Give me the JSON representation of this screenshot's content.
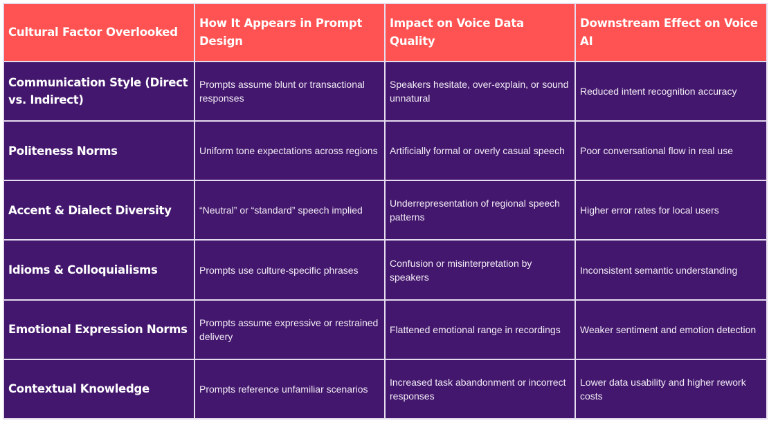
{
  "colors": {
    "header_bg": "#ff5252",
    "body_bg": "#43176d",
    "border": "#e6dcef",
    "text": "#ffffff"
  },
  "table": {
    "headers": [
      "Cultural Factor Overlooked",
      "How It Appears in Prompt Design",
      "Impact on Voice Data Quality",
      "Downstream Effect on Voice AI"
    ],
    "rows": [
      {
        "factor": "Communication Style (Direct vs. Indirect)",
        "appearance": "Prompts assume blunt or transactional responses",
        "impact": "Speakers hesitate, over-explain, or sound unnatural",
        "effect": "Reduced intent recognition accuracy"
      },
      {
        "factor": "Politeness Norms",
        "appearance": "Uniform tone expectations across regions",
        "impact": "Artificially formal or overly casual speech",
        "effect": "Poor conversational flow in real use"
      },
      {
        "factor": "Accent & Dialect Diversity",
        "appearance": "“Neutral” or “standard” speech implied",
        "impact": "Underrepresentation of regional speech patterns",
        "effect": "Higher error rates for local users"
      },
      {
        "factor": "Idioms & Colloquialisms",
        "appearance": "Prompts use culture-specific phrases",
        "impact": "Confusion or misinterpretation by speakers",
        "effect": "Inconsistent semantic understanding"
      },
      {
        "factor": "Emotional Expression Norms",
        "appearance": "Prompts assume expressive or restrained delivery",
        "impact": "Flattened emotional range in recordings",
        "effect": "Weaker sentiment and emotion detection"
      },
      {
        "factor": "Contextual Knowledge",
        "appearance": "Prompts reference unfamiliar scenarios",
        "impact": "Increased task abandonment or incorrect responses",
        "effect": "Lower data usability and higher rework costs"
      }
    ]
  }
}
